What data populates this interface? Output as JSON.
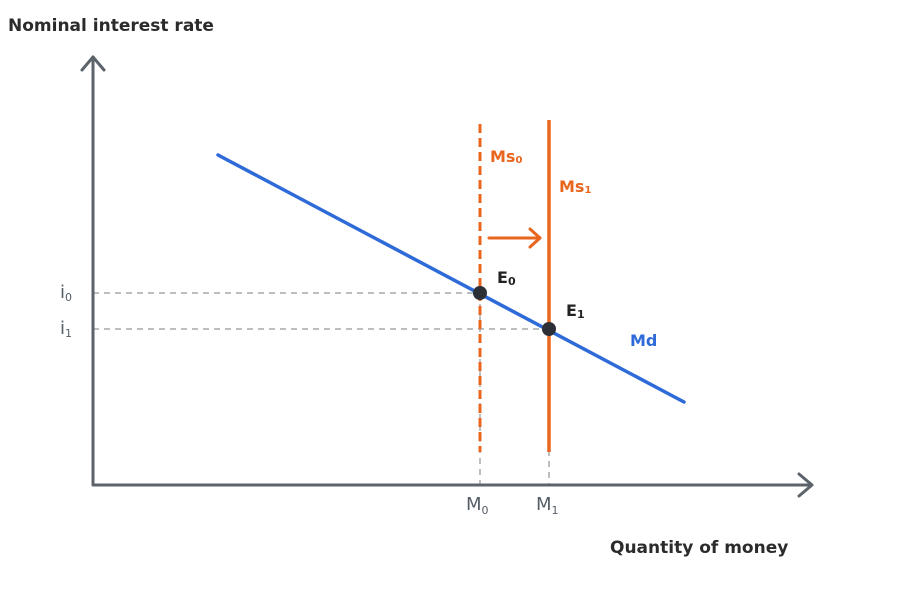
{
  "axes": {
    "y_title": "Nominal interest rate",
    "x_title": "Quantity of money"
  },
  "ticks": {
    "i0": {
      "base": "i",
      "sub": "0"
    },
    "i1": {
      "base": "i",
      "sub": "1"
    },
    "m0": {
      "base": "M",
      "sub": "0"
    },
    "m1": {
      "base": "M",
      "sub": "1"
    }
  },
  "curves": {
    "ms0": {
      "base": "Ms",
      "sub": "0"
    },
    "ms1": {
      "base": "Ms",
      "sub": "1"
    },
    "md": "Md"
  },
  "points": {
    "e0": {
      "base": "E",
      "sub": "0"
    },
    "e1": {
      "base": "E",
      "sub": "1"
    }
  },
  "colors": {
    "axis": "#5c636b",
    "money_demand": "#2e6ad8",
    "money_supply": "#e8661e",
    "guide": "#a7a9ad",
    "point": "#2c3036"
  }
}
